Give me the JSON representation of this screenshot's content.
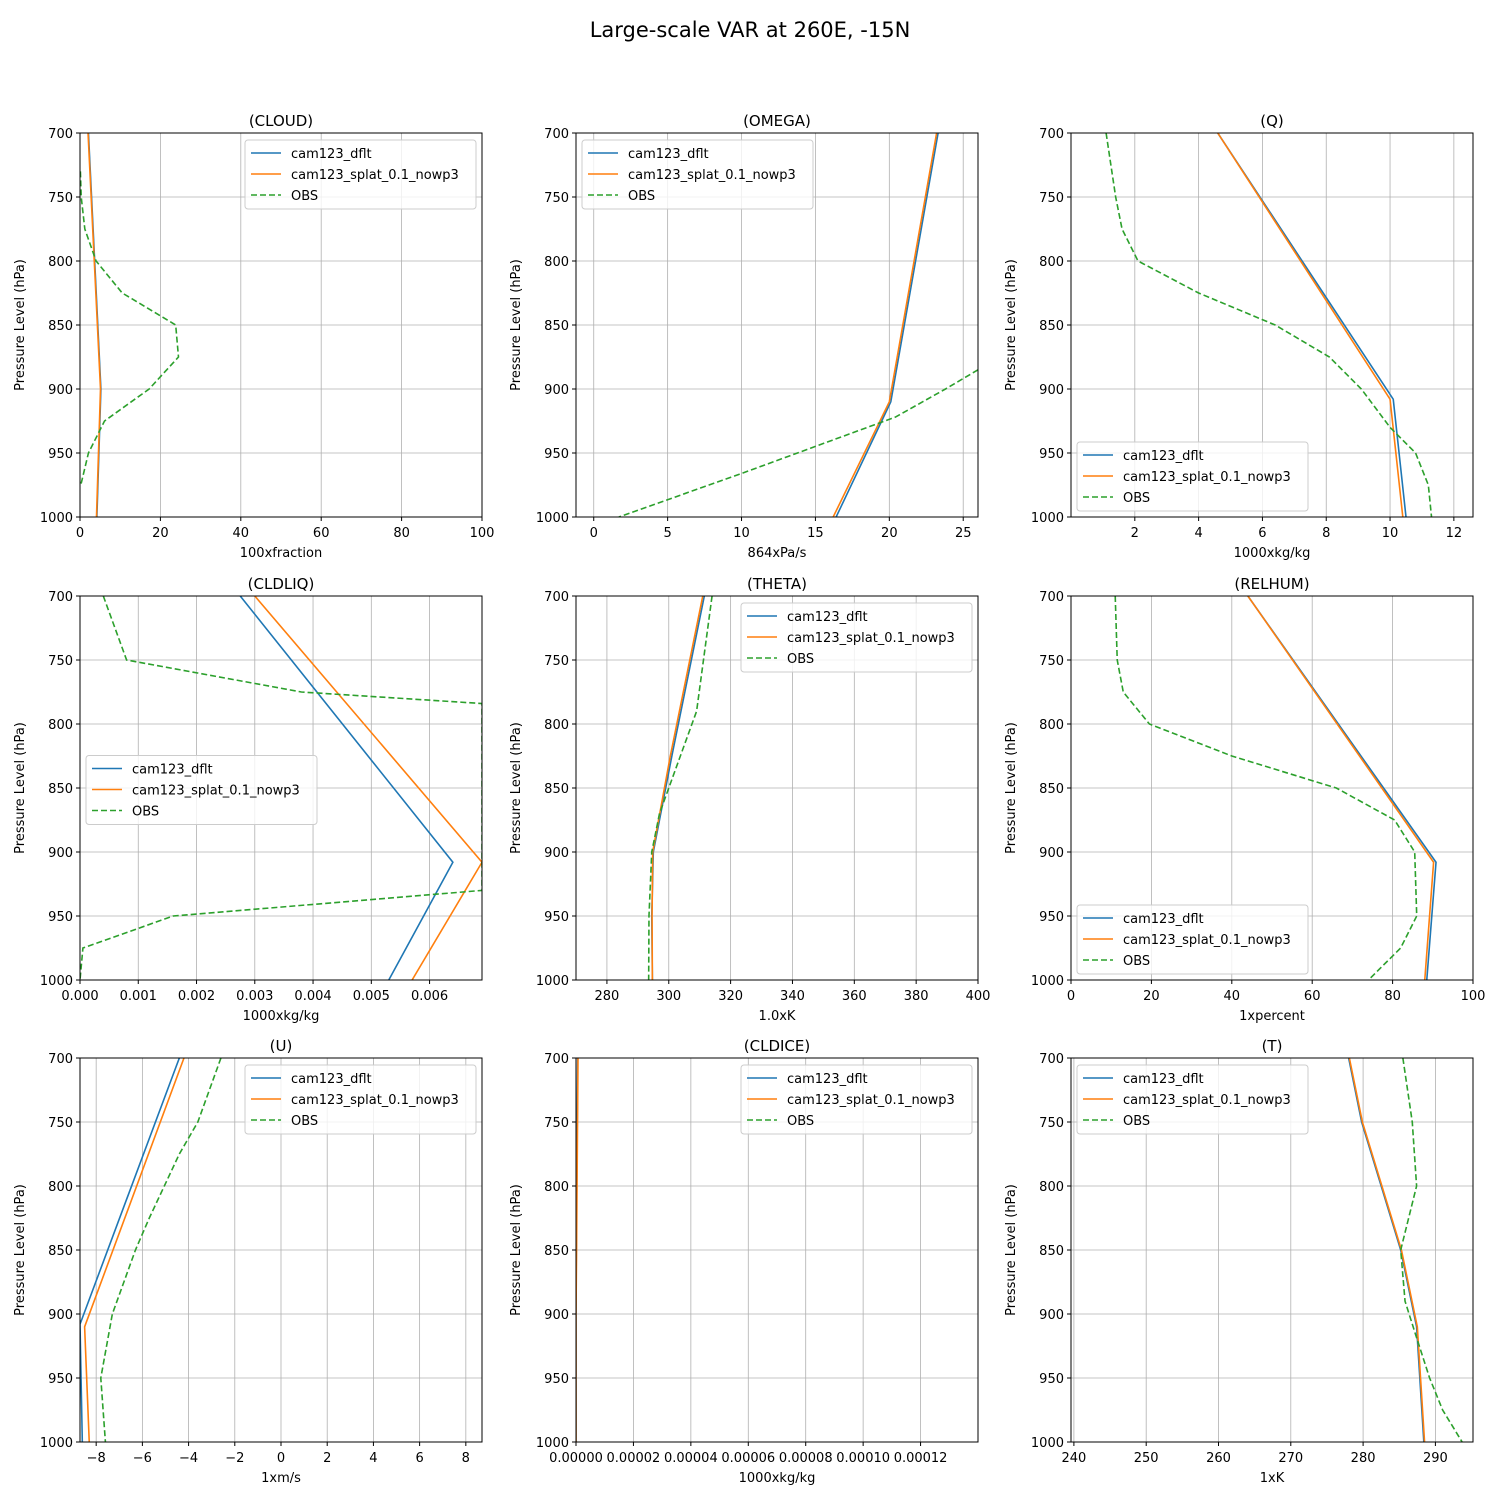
{
  "figure_title": "Large-scale VAR at 260E, -15N",
  "colors": {
    "dflt": "#1f77b4",
    "splat": "#ff7f0e",
    "obs": "#2ca02c",
    "grid": "#b0b0b0"
  },
  "chart_data": [
    {
      "type": "line",
      "title": "(CLOUD)",
      "xlabel": "100xfraction",
      "ylabel": "Pressure Level (hPa)",
      "xlim": [
        0,
        100
      ],
      "xticks": [
        0,
        20,
        40,
        60,
        80,
        100
      ],
      "ylim": [
        700,
        1000
      ],
      "yticks": [
        700,
        750,
        800,
        850,
        900,
        950,
        1000
      ],
      "legend": "upper-right",
      "series": [
        {
          "name": "cam123_dflt",
          "style": "solid",
          "points": [
            [
              2.1,
              700
            ],
            [
              5.2,
              900
            ],
            [
              5.1,
              910
            ],
            [
              4.2,
              1000
            ]
          ]
        },
        {
          "name": "cam123_splat_0.1_nowp3",
          "style": "solid",
          "points": [
            [
              2.0,
              700
            ],
            [
              5.1,
              900
            ],
            [
              5.0,
              910
            ],
            [
              4.1,
              1000
            ]
          ]
        },
        {
          "name": "OBS",
          "style": "dashed",
          "points": [
            [
              0.1,
              730
            ],
            [
              0.3,
              750
            ],
            [
              1.2,
              775
            ],
            [
              4.0,
              800
            ],
            [
              10.5,
              825
            ],
            [
              23.8,
              850
            ],
            [
              24.5,
              875
            ],
            [
              17.2,
              900
            ],
            [
              6.1,
              925
            ],
            [
              2.1,
              950
            ],
            [
              0.2,
              975
            ]
          ]
        }
      ]
    },
    {
      "type": "line",
      "title": "(OMEGA)",
      "xlabel": "864xPa/s",
      "ylabel": "Pressure Level (hPa)",
      "xlim": [
        -1.2,
        26
      ],
      "xticks": [
        0,
        5,
        10,
        15,
        20,
        25
      ],
      "ylim": [
        700,
        1000
      ],
      "yticks": [
        700,
        750,
        800,
        850,
        900,
        950,
        1000
      ],
      "legend": "upper-left",
      "series": [
        {
          "name": "cam123_dflt",
          "style": "solid",
          "points": [
            [
              23.3,
              700
            ],
            [
              20.1,
              910
            ],
            [
              16.4,
              1000
            ]
          ]
        },
        {
          "name": "cam123_splat_0.1_nowp3",
          "style": "solid",
          "points": [
            [
              23.2,
              700
            ],
            [
              20.0,
              910
            ],
            [
              16.2,
              1000
            ]
          ]
        },
        {
          "name": "OBS",
          "style": "dashed",
          "points": [
            [
              26.0,
              885
            ],
            [
              23.8,
              900
            ],
            [
              20.4,
              922
            ],
            [
              10.0,
              966
            ],
            [
              1.7,
              1000
            ]
          ]
        }
      ]
    },
    {
      "type": "line",
      "title": "(Q)",
      "xlabel": "1000xkg/kg",
      "ylabel": "Pressure Level (hPa)",
      "xlim": [
        0,
        12.6
      ],
      "xticks": [
        2,
        4,
        6,
        8,
        10,
        12
      ],
      "ylim": [
        700,
        1000
      ],
      "yticks": [
        700,
        750,
        800,
        850,
        900,
        950,
        1000
      ],
      "legend": "lower-left",
      "series": [
        {
          "name": "cam123_dflt",
          "style": "solid",
          "points": [
            [
              4.6,
              700
            ],
            [
              10.1,
              908
            ],
            [
              10.5,
              1000
            ]
          ]
        },
        {
          "name": "cam123_splat_0.1_nowp3",
          "style": "solid",
          "points": [
            [
              4.6,
              700
            ],
            [
              10.0,
              908
            ],
            [
              10.4,
              1000
            ]
          ]
        },
        {
          "name": "OBS",
          "style": "dashed",
          "points": [
            [
              1.1,
              700
            ],
            [
              1.4,
              750
            ],
            [
              1.6,
              775
            ],
            [
              2.1,
              800
            ],
            [
              4.0,
              825
            ],
            [
              6.4,
              850
            ],
            [
              8.1,
              875
            ],
            [
              9.1,
              900
            ],
            [
              10.0,
              930
            ],
            [
              10.8,
              950
            ],
            [
              11.2,
              975
            ],
            [
              11.3,
              1000
            ]
          ]
        }
      ]
    },
    {
      "type": "line",
      "title": "(CLDLIQ)",
      "xlabel": "1000xkg/kg",
      "ylabel": "Pressure Level (hPa)",
      "xlim": [
        0,
        0.0069
      ],
      "xticks": [
        0.0,
        0.001,
        0.002,
        0.003,
        0.004,
        0.005,
        0.006
      ],
      "ylim": [
        700,
        1000
      ],
      "yticks": [
        700,
        750,
        800,
        850,
        900,
        950,
        1000
      ],
      "legend": "center-left",
      "series": [
        {
          "name": "cam123_dflt",
          "style": "solid",
          "points": [
            [
              0.00275,
              700
            ],
            [
              0.0064,
              908
            ],
            [
              0.0053,
              1000
            ]
          ]
        },
        {
          "name": "cam123_splat_0.1_nowp3",
          "style": "solid",
          "points": [
            [
              0.003,
              700
            ],
            [
              0.0069,
              908
            ],
            [
              0.0057,
              1000
            ]
          ]
        },
        {
          "name": "OBS",
          "style": "dashed",
          "points": [
            [
              0.0004,
              700
            ],
            [
              0.0008,
              750
            ],
            [
              0.0038,
              775
            ],
            [
              0.0069,
              784
            ],
            [
              0.0069,
              930
            ],
            [
              0.0016,
              950
            ],
            [
              5e-05,
              975
            ],
            [
              0.0,
              1000
            ]
          ]
        }
      ]
    },
    {
      "type": "line",
      "title": "(THETA)",
      "xlabel": "1.0xK",
      "ylabel": "Pressure Level (hPa)",
      "xlim": [
        270,
        400
      ],
      "xticks": [
        280,
        300,
        320,
        340,
        360,
        380,
        400
      ],
      "ylim": [
        700,
        1000
      ],
      "yticks": [
        700,
        750,
        800,
        850,
        900,
        950,
        1000
      ],
      "legend": "upper-right",
      "series": [
        {
          "name": "cam123_dflt",
          "style": "solid",
          "points": [
            [
              311.5,
              700
            ],
            [
              301.0,
              825
            ],
            [
              295.0,
              900
            ],
            [
              294.5,
              950
            ],
            [
              294.7,
              1000
            ]
          ]
        },
        {
          "name": "cam123_splat_0.1_nowp3",
          "style": "solid",
          "points": [
            [
              311.0,
              700
            ],
            [
              300.5,
              825
            ],
            [
              294.8,
              900
            ],
            [
              294.6,
              950
            ],
            [
              294.7,
              1000
            ]
          ]
        },
        {
          "name": "OBS",
          "style": "dashed",
          "points": [
            [
              314.0,
              700
            ],
            [
              309.0,
              790
            ],
            [
              303.0,
              830
            ],
            [
              297.0,
              870
            ],
            [
              294.5,
              900
            ],
            [
              293.6,
              950
            ],
            [
              293.5,
              1000
            ]
          ]
        }
      ]
    },
    {
      "type": "line",
      "title": "(RELHUM)",
      "xlabel": "1xpercent",
      "ylabel": "Pressure Level (hPa)",
      "xlim": [
        0,
        100
      ],
      "xticks": [
        0,
        20,
        40,
        60,
        80,
        100
      ],
      "ylim": [
        700,
        1000
      ],
      "yticks": [
        700,
        750,
        800,
        850,
        900,
        950,
        1000
      ],
      "legend": "lower-left",
      "series": [
        {
          "name": "cam123_dflt",
          "style": "solid",
          "points": [
            [
              44.0,
              700
            ],
            [
              90.8,
              908
            ],
            [
              88.5,
              1000
            ]
          ]
        },
        {
          "name": "cam123_splat_0.1_nowp3",
          "style": "solid",
          "points": [
            [
              44.0,
              700
            ],
            [
              90.2,
              908
            ],
            [
              88.0,
              1000
            ]
          ]
        },
        {
          "name": "OBS",
          "style": "dashed",
          "points": [
            [
              11.0,
              700
            ],
            [
              11.5,
              750
            ],
            [
              13.0,
              775
            ],
            [
              19.5,
              800
            ],
            [
              40.0,
              825
            ],
            [
              66.0,
              850
            ],
            [
              80.5,
              875
            ],
            [
              85.5,
              900
            ],
            [
              86.0,
              950
            ],
            [
              82.0,
              975
            ],
            [
              74.0,
              1000
            ]
          ]
        }
      ]
    },
    {
      "type": "line",
      "title": "(U)",
      "xlabel": "1xm/s",
      "ylabel": "Pressure Level (hPa)",
      "xlim": [
        -8.7,
        8.7
      ],
      "xticks": [
        -8,
        -6,
        -4,
        -2,
        0,
        2,
        4,
        6,
        8
      ],
      "ylim": [
        700,
        1000
      ],
      "yticks": [
        700,
        750,
        800,
        850,
        900,
        950,
        1000
      ],
      "legend": "upper-right",
      "series": [
        {
          "name": "cam123_dflt",
          "style": "solid",
          "points": [
            [
              -4.4,
              700
            ],
            [
              -8.7,
              908
            ],
            [
              -8.6,
              1000
            ]
          ]
        },
        {
          "name": "cam123_splat_0.1_nowp3",
          "style": "solid",
          "points": [
            [
              -4.2,
              700
            ],
            [
              -8.5,
              910
            ],
            [
              -8.3,
              1000
            ]
          ]
        },
        {
          "name": "OBS",
          "style": "dashed",
          "points": [
            [
              -2.6,
              700
            ],
            [
              -3.6,
              750
            ],
            [
              -4.4,
              775
            ],
            [
              -5.7,
              825
            ],
            [
              -6.3,
              850
            ],
            [
              -7.3,
              900
            ],
            [
              -7.8,
              950
            ],
            [
              -7.6,
              1000
            ]
          ]
        }
      ]
    },
    {
      "type": "line",
      "title": "(CLDICE)",
      "xlabel": "1000xkg/kg",
      "ylabel": "Pressure Level (hPa)",
      "xlim": [
        0,
        0.00014
      ],
      "xticks": [
        0.0,
        2e-05,
        4e-05,
        6e-05,
        8e-05,
        0.0001,
        0.00012
      ],
      "xticklabels": [
        "0.00000",
        "0.00002",
        "0.00004",
        "0.00006",
        "0.00008",
        "0.00010",
        "0.00012"
      ],
      "ylim": [
        700,
        1000
      ],
      "yticks": [
        700,
        750,
        800,
        850,
        900,
        950,
        1000
      ],
      "legend": "upper-right",
      "series": [
        {
          "name": "cam123_dflt",
          "style": "solid",
          "points": [
            [
              6e-07,
              700
            ],
            [
              1e-07,
              850
            ],
            [
              0.0,
              900
            ],
            [
              0.0,
              1000
            ]
          ]
        },
        {
          "name": "cam123_splat_0.1_nowp3",
          "style": "solid",
          "points": [
            [
              7e-07,
              700
            ],
            [
              2e-07,
              850
            ],
            [
              0.0,
              900
            ],
            [
              0.0,
              1000
            ]
          ]
        },
        {
          "name": "OBS",
          "style": "dashed",
          "points": []
        }
      ]
    },
    {
      "type": "line",
      "title": "(T)",
      "xlabel": "1xK",
      "ylabel": "Pressure Level (hPa)",
      "xlim": [
        239.6,
        295.2
      ],
      "xticks": [
        240,
        250,
        260,
        270,
        280,
        290
      ],
      "ylim": [
        700,
        1000
      ],
      "yticks": [
        700,
        750,
        800,
        850,
        900,
        950,
        1000
      ],
      "legend": "upper-left",
      "series": [
        {
          "name": "cam123_dflt",
          "style": "solid",
          "points": [
            [
              278.0,
              700
            ],
            [
              279.8,
              750
            ],
            [
              285.2,
              850
            ],
            [
              287.4,
              910
            ],
            [
              288.4,
              1000
            ]
          ]
        },
        {
          "name": "cam123_splat_0.1_nowp3",
          "style": "solid",
          "points": [
            [
              278.1,
              700
            ],
            [
              279.9,
              750
            ],
            [
              285.3,
              850
            ],
            [
              287.5,
              910
            ],
            [
              288.5,
              1000
            ]
          ]
        },
        {
          "name": "OBS",
          "style": "dashed",
          "points": [
            [
              285.5,
              700
            ],
            [
              286.8,
              750
            ],
            [
              287.4,
              800
            ],
            [
              285.2,
              850
            ],
            [
              285.8,
              890
            ],
            [
              287.2,
              915
            ],
            [
              289.2,
              950
            ],
            [
              291.0,
              975
            ],
            [
              293.7,
              1000
            ]
          ]
        }
      ]
    }
  ]
}
